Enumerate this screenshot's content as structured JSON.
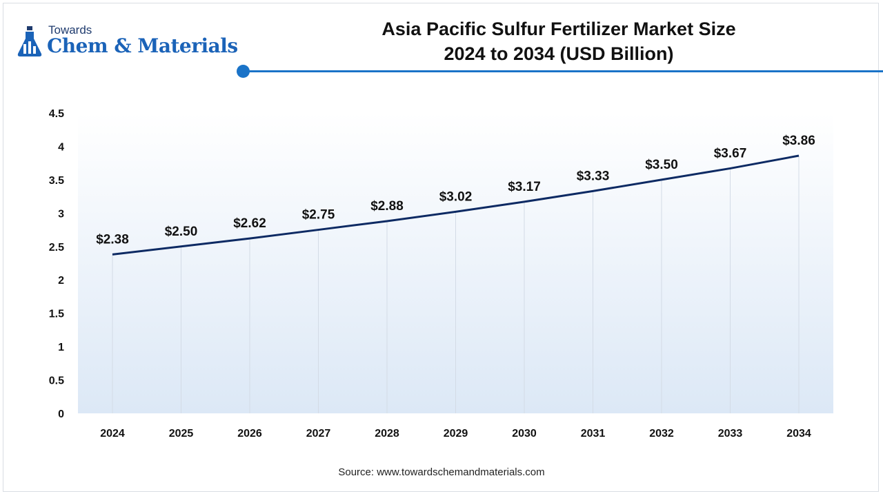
{
  "brand": {
    "top_text": "Towards",
    "main_text": "Chem & Materials"
  },
  "title_line1": "Asia Pacific Sulfur Fertilizer Market Size",
  "title_line2": "2024 to 2034 (USD Billion)",
  "source": "Source: www.towardschemandmaterials.com",
  "colors": {
    "line": "#0d2a63",
    "accent": "#1a73c8",
    "plot_bg_top": "#ffffff",
    "plot_bg_bottom": "#dce8f6"
  },
  "chart_data": {
    "type": "area",
    "title": "Asia Pacific Sulfur Fertilizer Market Size 2024 to 2034 (USD Billion)",
    "xlabel": "",
    "ylabel": "",
    "categories": [
      "2024",
      "2025",
      "2026",
      "2027",
      "2028",
      "2029",
      "2030",
      "2031",
      "2032",
      "2033",
      "2034"
    ],
    "values": [
      2.38,
      2.5,
      2.62,
      2.75,
      2.88,
      3.02,
      3.17,
      3.33,
      3.5,
      3.67,
      3.86
    ],
    "data_labels": [
      "$2.38",
      "$2.50",
      "$2.62",
      "$2.75",
      "$2.88",
      "$3.02",
      "$3.17",
      "$3.33",
      "$3.50",
      "$3.67",
      "$3.86"
    ],
    "ylim": [
      0,
      4.5
    ],
    "yticks": [
      "0",
      "0.5",
      "1",
      "1.5",
      "2",
      "2.5",
      "3",
      "3.5",
      "4",
      "4.5"
    ],
    "ytick_values": [
      0,
      0.5,
      1,
      1.5,
      2,
      2.5,
      3,
      3.5,
      4,
      4.5
    ],
    "grid": "vertical",
    "legend": "none"
  }
}
